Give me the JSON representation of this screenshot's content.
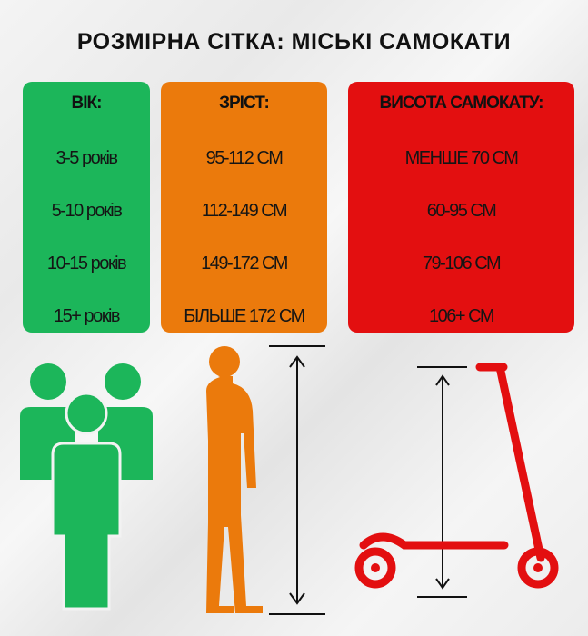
{
  "title": "РОЗМІРНА СІТКА: МІСЬКІ САМОКАТИ",
  "columns": [
    {
      "header": "ВІК:",
      "color": "#1cb65a",
      "rows": [
        "3-5 років",
        "5-10 років",
        "10-15 років",
        "15+ років"
      ]
    },
    {
      "header": "ЗРІСТ:",
      "color": "#eb7a0c",
      "rows": [
        "95-112 СМ",
        "112-149 СМ",
        "149-172 СМ",
        "БІЛЬШЕ 172 СМ"
      ]
    },
    {
      "header": "ВИСОТА САМОКАТУ:",
      "color": "#e30f10",
      "rows": [
        "МЕНШЕ 70 СМ",
        "60-95 СМ",
        "79-106 СМ",
        "106+ СМ"
      ]
    }
  ],
  "icons": [
    "people-group-icon",
    "person-silhouette-icon",
    "height-arrow-icon",
    "scooter-icon"
  ]
}
